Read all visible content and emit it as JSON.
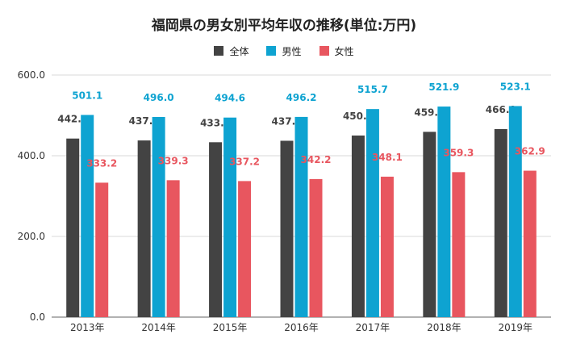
{
  "chart_data": {
    "type": "bar",
    "title": "福岡県の男女別平均年収の推移(単位:万円)",
    "categories": [
      "2013年",
      "2014年",
      "2015年",
      "2016年",
      "2017年",
      "2018年",
      "2019年"
    ],
    "series": [
      {
        "name": "全体",
        "color": "#434343",
        "label_color": "#434343",
        "values": [
          442.6,
          437.9,
          433.4,
          437.1,
          450.1,
          459.2,
          466.0
        ]
      },
      {
        "name": "男性",
        "color": "#0ea3d1",
        "label_color": "#0ea3d1",
        "values": [
          501.1,
          496.0,
          494.6,
          496.2,
          515.7,
          521.9,
          523.1
        ]
      },
      {
        "name": "女性",
        "color": "#e8565f",
        "label_color": "#e8565f",
        "values": [
          333.2,
          339.3,
          337.2,
          342.2,
          348.1,
          359.3,
          362.9
        ]
      }
    ],
    "ylim": [
      0,
      600
    ],
    "yticks": [
      0,
      200,
      400,
      600
    ],
    "ytick_labels": [
      "0.0",
      "200.0",
      "400.0",
      "600.0"
    ],
    "xlabel": "",
    "ylabel": "",
    "grid": true,
    "legend_position": "top"
  }
}
